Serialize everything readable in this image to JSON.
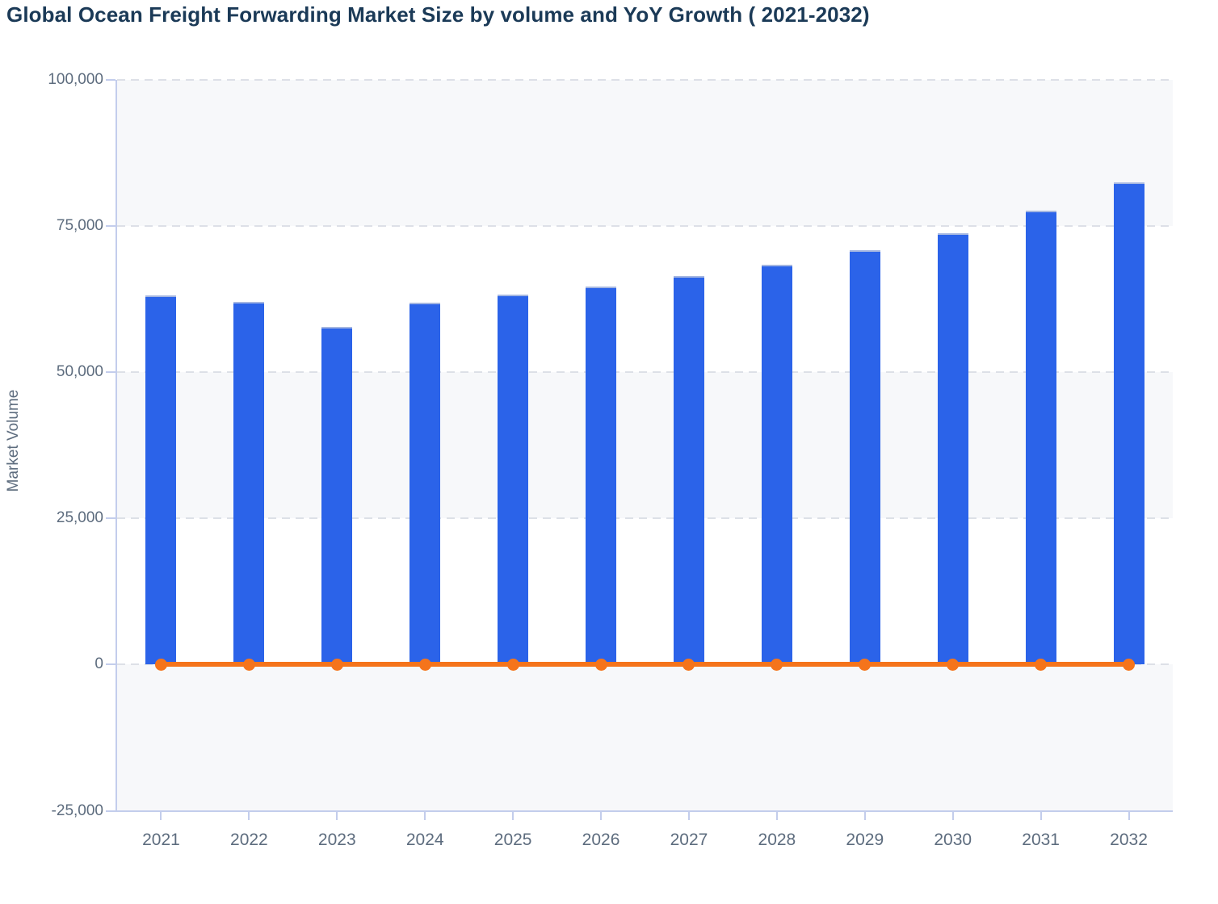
{
  "title": "Global Ocean Freight Forwarding Market Size by volume and YoY Growth ( 2021-2032)",
  "chart_data": {
    "type": "bar",
    "title": "Global Ocean Freight Forwarding Market Size by volume and YoY Growth ( 2021-2032)",
    "categories": [
      "2021",
      "2022",
      "2023",
      "2024",
      "2025",
      "2026",
      "2027",
      "2028",
      "2029",
      "2030",
      "2031",
      "2032"
    ],
    "series": [
      {
        "name": "Market Volume",
        "type": "bar",
        "color": "#2b63e9",
        "values": [
          63200,
          62000,
          57700,
          61900,
          63300,
          64700,
          66500,
          68400,
          70900,
          73800,
          77600,
          82400
        ]
      },
      {
        "name": "YoY Growth",
        "type": "line",
        "color": "#f5741b",
        "values": [
          0,
          0,
          0,
          0,
          0,
          0,
          0,
          0,
          0,
          0,
          0,
          0
        ]
      }
    ],
    "xlabel": "",
    "ylabel": "Market Volume",
    "ylim": [
      -25000,
      100000
    ],
    "yticks": [
      {
        "value": 100000,
        "label": "100,000"
      },
      {
        "value": 75000,
        "label": "75,000"
      },
      {
        "value": 50000,
        "label": "50,000"
      },
      {
        "value": 25000,
        "label": "25,000"
      },
      {
        "value": 0,
        "label": "0"
      },
      {
        "value": -25000,
        "label": "-25,000"
      }
    ],
    "grid": "horizontal-dashed",
    "legend_position": "none",
    "accent_colors": {
      "bar_blue": "#2b63e9",
      "line_orange": "#f5741b",
      "axis_lavender": "#c3cdec",
      "band_gray": "#f7f8fa",
      "title_navy": "#1b3a57",
      "axis_text": "#5d6c7e"
    }
  }
}
